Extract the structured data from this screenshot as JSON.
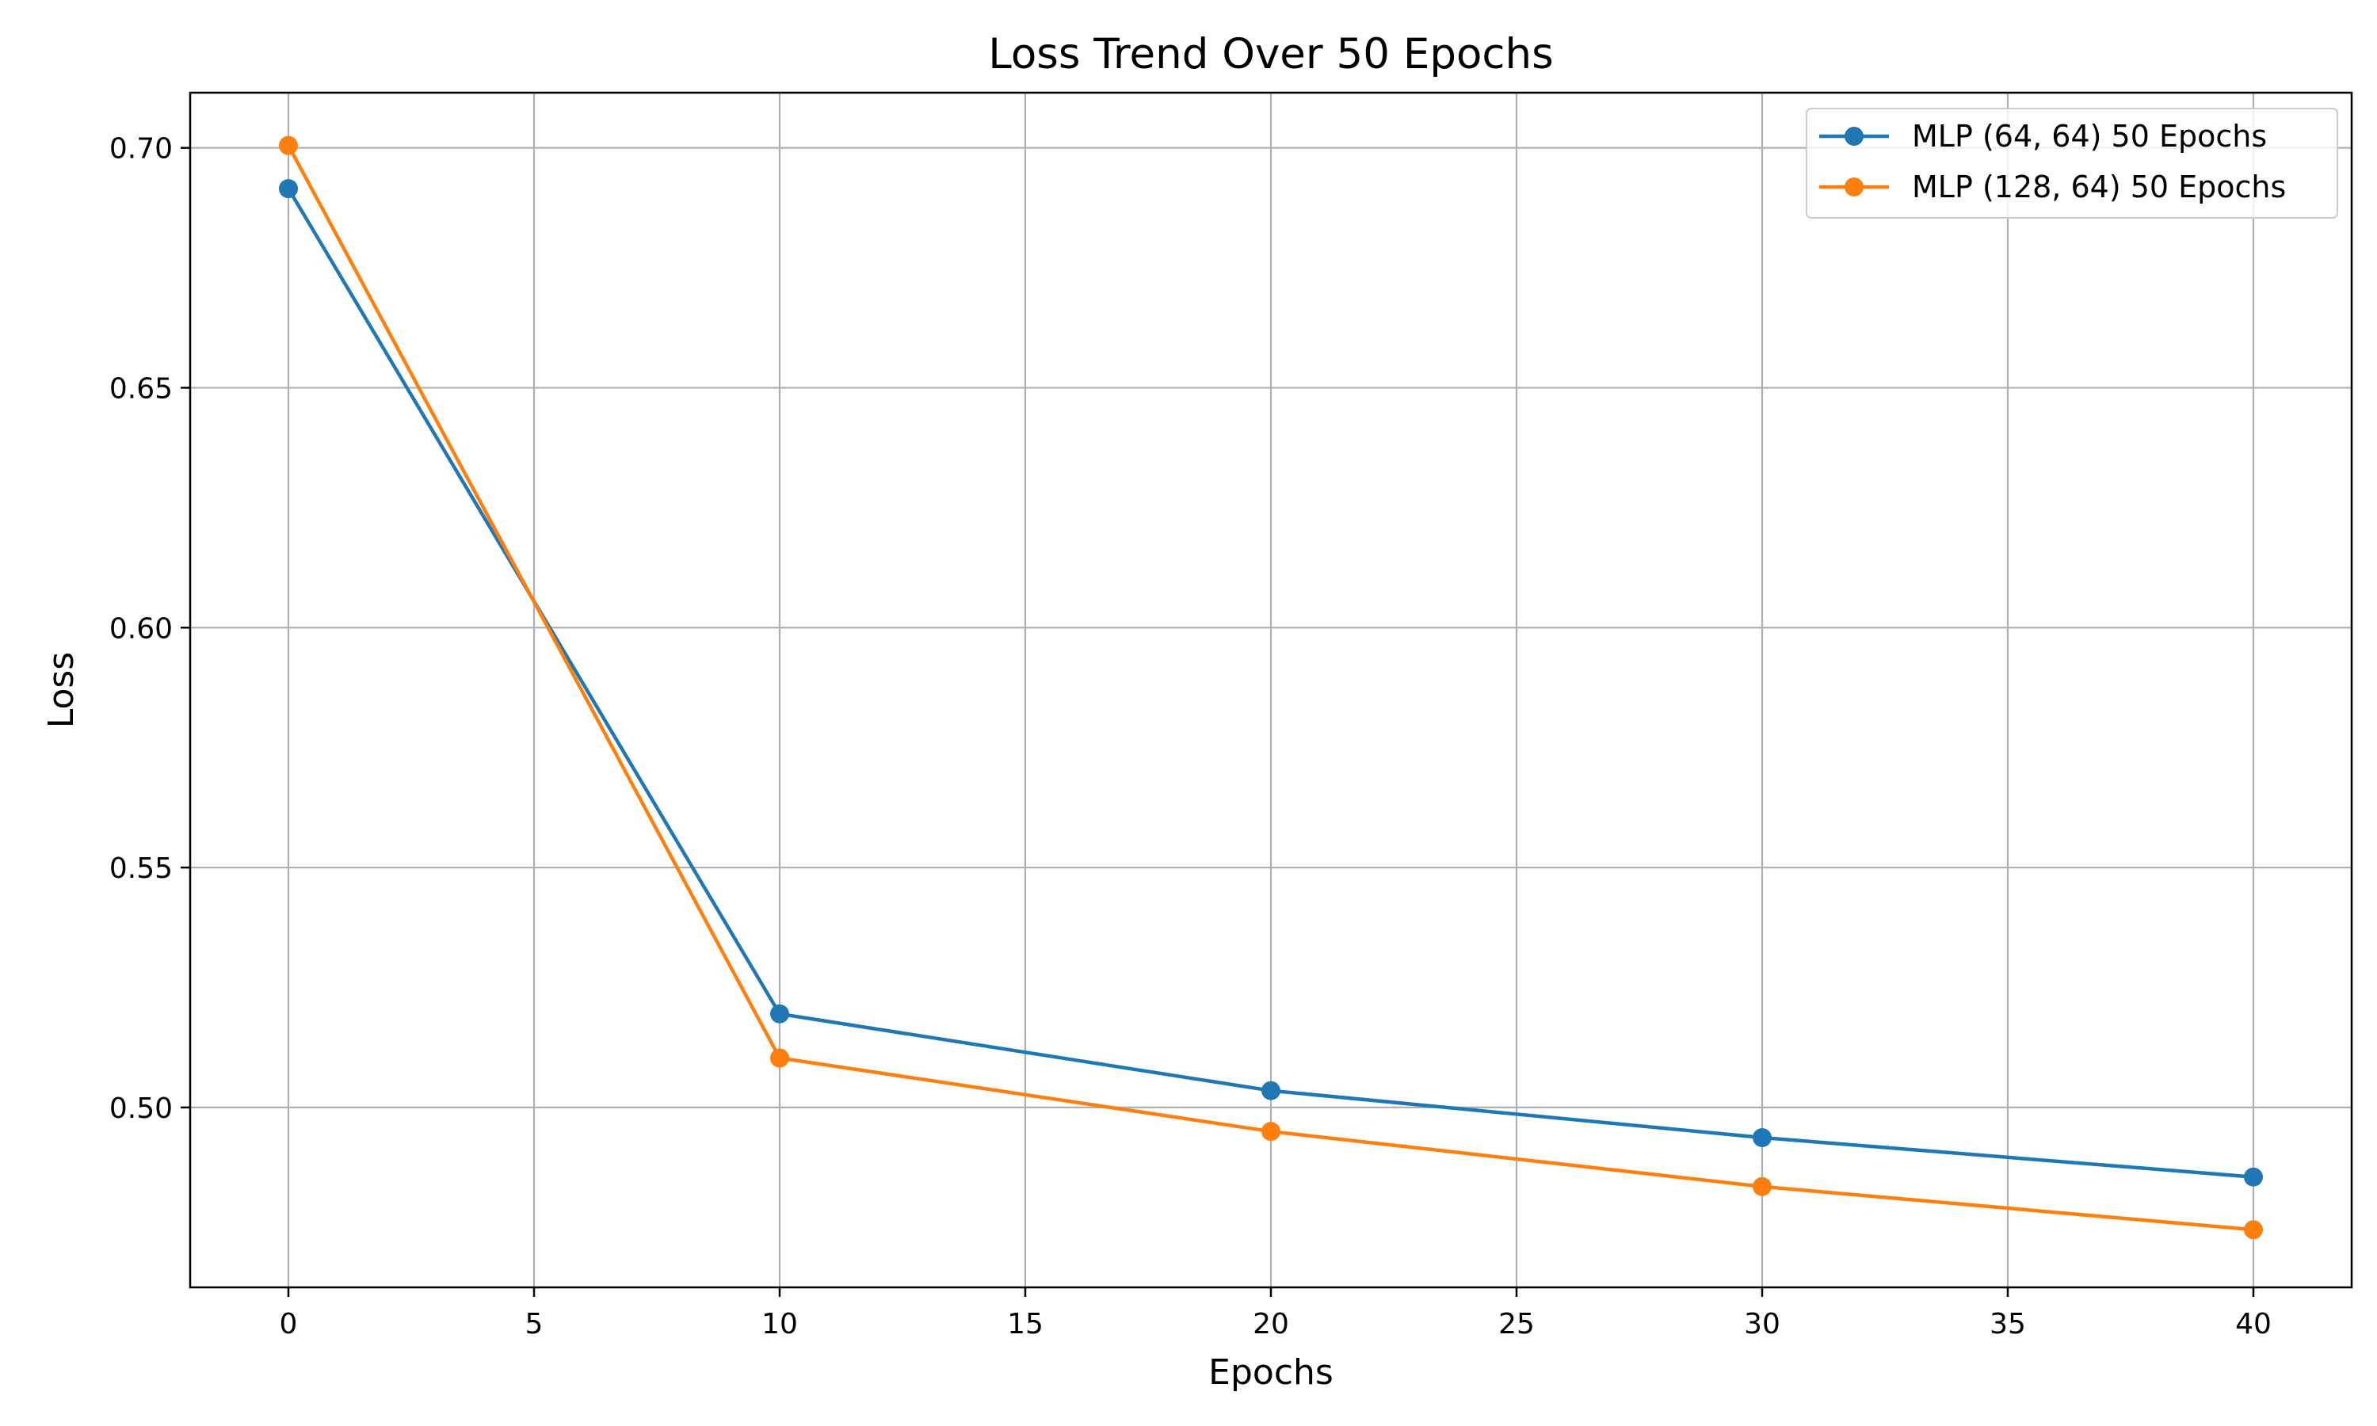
{
  "chart_data": {
    "type": "line",
    "title": "Loss Trend Over 50 Epochs",
    "xlabel": "Epochs",
    "ylabel": "Loss",
    "x": [
      0,
      10,
      20,
      30,
      40
    ],
    "series": [
      {
        "name": "MLP (64, 64) 50 Epochs",
        "color": "#1f77b4",
        "values": [
          0.6915,
          0.5195,
          0.5035,
          0.4937,
          0.4855
        ]
      },
      {
        "name": "MLP (128, 64) 50 Epochs",
        "color": "#ff7f0e",
        "values": [
          0.7005,
          0.5103,
          0.495,
          0.4835,
          0.4745
        ]
      }
    ],
    "xlim": [
      -2,
      42
    ],
    "ylim": [
      0.4625,
      0.7115
    ],
    "xticks": [
      0,
      5,
      10,
      15,
      20,
      25,
      30,
      35,
      40
    ],
    "xtick_labels": [
      "0",
      "5",
      "10",
      "15",
      "20",
      "25",
      "30",
      "35",
      "40"
    ],
    "yticks": [
      0.5,
      0.55,
      0.6,
      0.65,
      0.7
    ],
    "ytick_labels": [
      "0.50",
      "0.55",
      "0.60",
      "0.65",
      "0.70"
    ],
    "grid": true,
    "legend_position": "top-right",
    "marker": "circle"
  }
}
